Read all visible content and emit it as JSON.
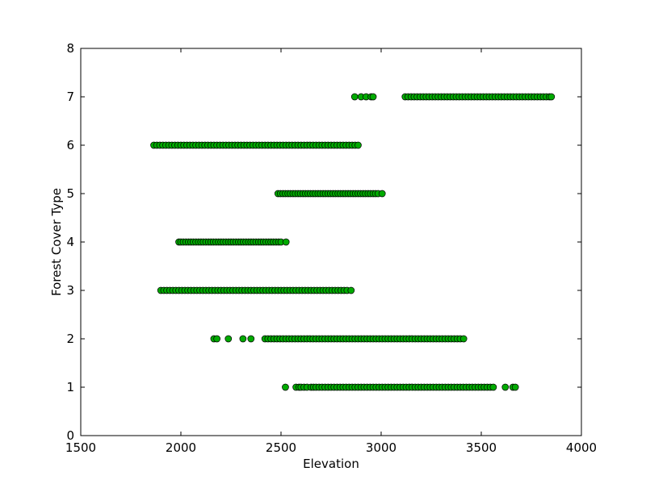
{
  "chart_data": {
    "type": "scatter",
    "title": "",
    "xlabel": "Elevation",
    "ylabel": "Forest Cover Type",
    "xlim": [
      1500,
      4000
    ],
    "ylim": [
      0,
      8
    ],
    "xticks": [
      1500,
      2000,
      2500,
      3000,
      3500,
      4000
    ],
    "yticks": [
      0,
      1,
      2,
      3,
      4,
      5,
      6,
      7,
      8
    ],
    "grid": false,
    "legend": "none",
    "marker_color": "#00aa00",
    "marker_edge_color": "#000000",
    "series": [
      {
        "y": 1,
        "x": [
          2522,
          2575,
          2590,
          2600,
          2615,
          2630,
          2650,
          2662,
          2675,
          2690,
          2705,
          2720,
          2735,
          2750,
          2765,
          2780,
          2795,
          2810,
          2825,
          2840,
          2855,
          2870,
          2885,
          2900,
          2915,
          2930,
          2945,
          2960,
          2975,
          2990,
          3005,
          3020,
          3035,
          3050,
          3065,
          3080,
          3095,
          3110,
          3125,
          3140,
          3155,
          3170,
          3185,
          3200,
          3215,
          3230,
          3245,
          3260,
          3275,
          3290,
          3305,
          3320,
          3335,
          3350,
          3365,
          3380,
          3395,
          3410,
          3425,
          3440,
          3455,
          3470,
          3485,
          3500,
          3515,
          3530,
          3545,
          3560,
          3620,
          3658,
          3670
        ]
      },
      {
        "y": 2,
        "x": [
          2165,
          2180,
          2237,
          2310,
          2350,
          2420,
          2435,
          2450,
          2465,
          2480,
          2495,
          2510,
          2525,
          2540,
          2555,
          2570,
          2585,
          2600,
          2615,
          2630,
          2645,
          2660,
          2675,
          2690,
          2705,
          2720,
          2735,
          2750,
          2765,
          2780,
          2795,
          2810,
          2825,
          2840,
          2855,
          2870,
          2885,
          2900,
          2915,
          2930,
          2945,
          2960,
          2975,
          2990,
          3005,
          3020,
          3035,
          3050,
          3065,
          3080,
          3095,
          3110,
          3125,
          3140,
          3155,
          3170,
          3185,
          3200,
          3215,
          3230,
          3245,
          3260,
          3275,
          3290,
          3305,
          3320,
          3335,
          3350,
          3365,
          3380,
          3395,
          3412
        ]
      },
      {
        "y": 3,
        "x": [
          1900,
          1915,
          1930,
          1945,
          1960,
          1975,
          1990,
          2005,
          2020,
          2035,
          2050,
          2065,
          2080,
          2095,
          2110,
          2125,
          2140,
          2155,
          2170,
          2185,
          2200,
          2215,
          2230,
          2245,
          2260,
          2275,
          2290,
          2305,
          2320,
          2335,
          2350,
          2365,
          2380,
          2395,
          2410,
          2425,
          2440,
          2455,
          2470,
          2485,
          2500,
          2515,
          2530,
          2545,
          2560,
          2575,
          2590,
          2605,
          2620,
          2635,
          2650,
          2665,
          2680,
          2695,
          2710,
          2725,
          2740,
          2755,
          2770,
          2785,
          2800,
          2815,
          2830,
          2850
        ]
      },
      {
        "y": 4,
        "x": [
          1990,
          2000,
          2012,
          2025,
          2038,
          2050,
          2062,
          2075,
          2088,
          2100,
          2112,
          2125,
          2138,
          2150,
          2162,
          2175,
          2188,
          2200,
          2212,
          2225,
          2238,
          2250,
          2262,
          2275,
          2288,
          2300,
          2312,
          2325,
          2338,
          2350,
          2362,
          2375,
          2388,
          2400,
          2412,
          2425,
          2438,
          2450,
          2462,
          2475,
          2488,
          2500,
          2525
        ]
      },
      {
        "y": 5,
        "x": [
          2485,
          2497,
          2510,
          2522,
          2535,
          2547,
          2560,
          2572,
          2585,
          2597,
          2610,
          2622,
          2635,
          2647,
          2660,
          2672,
          2685,
          2697,
          2710,
          2722,
          2735,
          2747,
          2760,
          2772,
          2785,
          2797,
          2810,
          2822,
          2835,
          2847,
          2860,
          2872,
          2885,
          2897,
          2910,
          2922,
          2935,
          2947,
          2960,
          2972,
          2985,
          3005
        ]
      },
      {
        "y": 6,
        "x": [
          1865,
          1880,
          1895,
          1910,
          1925,
          1940,
          1955,
          1970,
          1985,
          2000,
          2015,
          2030,
          2045,
          2060,
          2075,
          2090,
          2105,
          2120,
          2135,
          2150,
          2165,
          2180,
          2195,
          2210,
          2225,
          2240,
          2255,
          2270,
          2285,
          2300,
          2315,
          2330,
          2345,
          2360,
          2375,
          2390,
          2405,
          2420,
          2435,
          2450,
          2465,
          2480,
          2495,
          2510,
          2525,
          2540,
          2555,
          2570,
          2585,
          2600,
          2615,
          2630,
          2645,
          2660,
          2675,
          2690,
          2705,
          2720,
          2735,
          2750,
          2765,
          2780,
          2795,
          2810,
          2825,
          2840,
          2855,
          2870,
          2885
        ]
      },
      {
        "y": 7,
        "x": [
          2868,
          2900,
          2925,
          2950,
          2960,
          3120,
          3135,
          3150,
          3165,
          3180,
          3195,
          3210,
          3225,
          3240,
          3255,
          3270,
          3285,
          3300,
          3315,
          3330,
          3345,
          3360,
          3375,
          3390,
          3405,
          3420,
          3435,
          3450,
          3465,
          3480,
          3495,
          3510,
          3525,
          3540,
          3555,
          3570,
          3585,
          3600,
          3615,
          3630,
          3645,
          3660,
          3675,
          3690,
          3705,
          3720,
          3735,
          3750,
          3765,
          3780,
          3795,
          3810,
          3825,
          3840,
          3850
        ]
      }
    ]
  }
}
